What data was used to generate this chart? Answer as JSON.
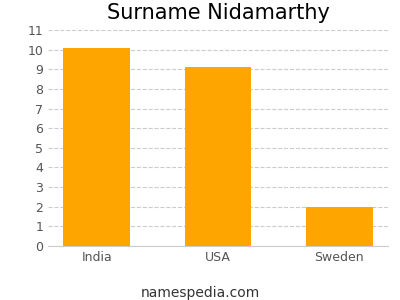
{
  "title": "Surname Nidamarthy",
  "categories": [
    "India",
    "USA",
    "Sweden"
  ],
  "values": [
    10.1,
    9.1,
    2.0
  ],
  "bar_color": "#FFA500",
  "ylim": [
    0,
    11
  ],
  "yticks": [
    0,
    1,
    2,
    3,
    4,
    5,
    6,
    7,
    8,
    9,
    10,
    11
  ],
  "grid_color": "#cccccc",
  "background_color": "#ffffff",
  "title_fontsize": 15,
  "tick_fontsize": 9,
  "footer_text": "namespedia.com",
  "footer_fontsize": 10,
  "footer_color": "#333333",
  "bar_width": 0.55
}
